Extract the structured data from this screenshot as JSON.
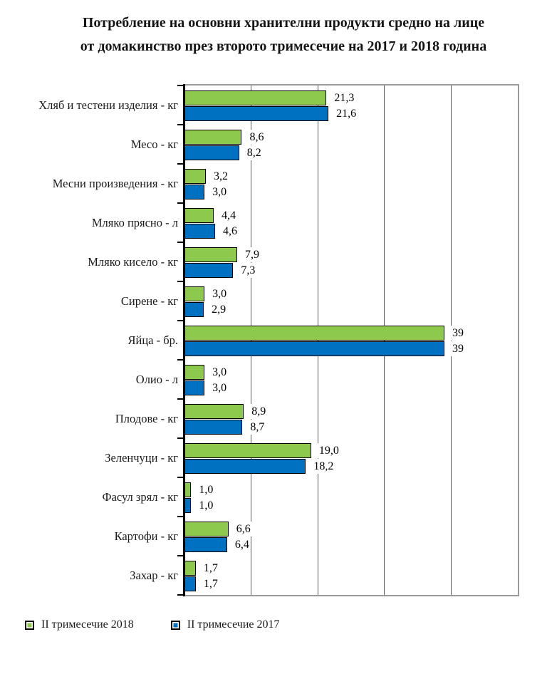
{
  "page": {
    "background": "#ffffff"
  },
  "chart_data": {
    "type": "bar",
    "orientation": "horizontal",
    "title_line1": "Потребление на основни хранителни продукти средно на лице",
    "title_line2": "от домакинство през второто тримесечие на 2017 и 2018 година",
    "categories": [
      "Хляб и тестени изделия - кг",
      "Месо - кг",
      "Месни произведения  - кг",
      "Мляко прясно - л",
      "Мляко кисело - кг",
      "Сирене - кг",
      "Яйца - бр.",
      "Олио - л",
      "Плодове - кг",
      "Зеленчуци - кг",
      "Фасул зрял - кг",
      "Картофи - кг",
      "Захар - кг"
    ],
    "series": [
      {
        "name": "II тримесечие 2018",
        "color": "#8DC94C",
        "values": [
          21.3,
          8.6,
          3.2,
          4.4,
          7.9,
          3.0,
          39,
          3.0,
          8.9,
          19.0,
          1.0,
          6.6,
          1.7
        ],
        "labels": [
          "21,3",
          "8,6",
          "3,2",
          "4,4",
          "7,9",
          "3,0",
          "39",
          "3,0",
          "8,9",
          "19,0",
          "1,0",
          "6,6",
          "1,7"
        ]
      },
      {
        "name": "II тримесечие 2017",
        "color": "#0070C0",
        "values": [
          21.6,
          8.2,
          3.0,
          4.6,
          7.3,
          2.9,
          39,
          3.0,
          8.7,
          18.2,
          1.0,
          6.4,
          1.7
        ],
        "labels": [
          "21,6",
          "8,2",
          "3,0",
          "4,6",
          "7,3",
          "2,9",
          "39",
          "3,0",
          "8,7",
          "18,2",
          "1,0",
          "6,4",
          "1,7"
        ]
      }
    ],
    "xlim": [
      0,
      50
    ],
    "gridlines": [
      10,
      20,
      30,
      40
    ],
    "grid": true,
    "legend_position": "bottom-left",
    "colors": {
      "grid": "#5a5a5a",
      "plot_border": "#9a9a9a",
      "axis": "#000000",
      "bar_border": "#000000",
      "label_text": "#1a1a1a"
    }
  }
}
